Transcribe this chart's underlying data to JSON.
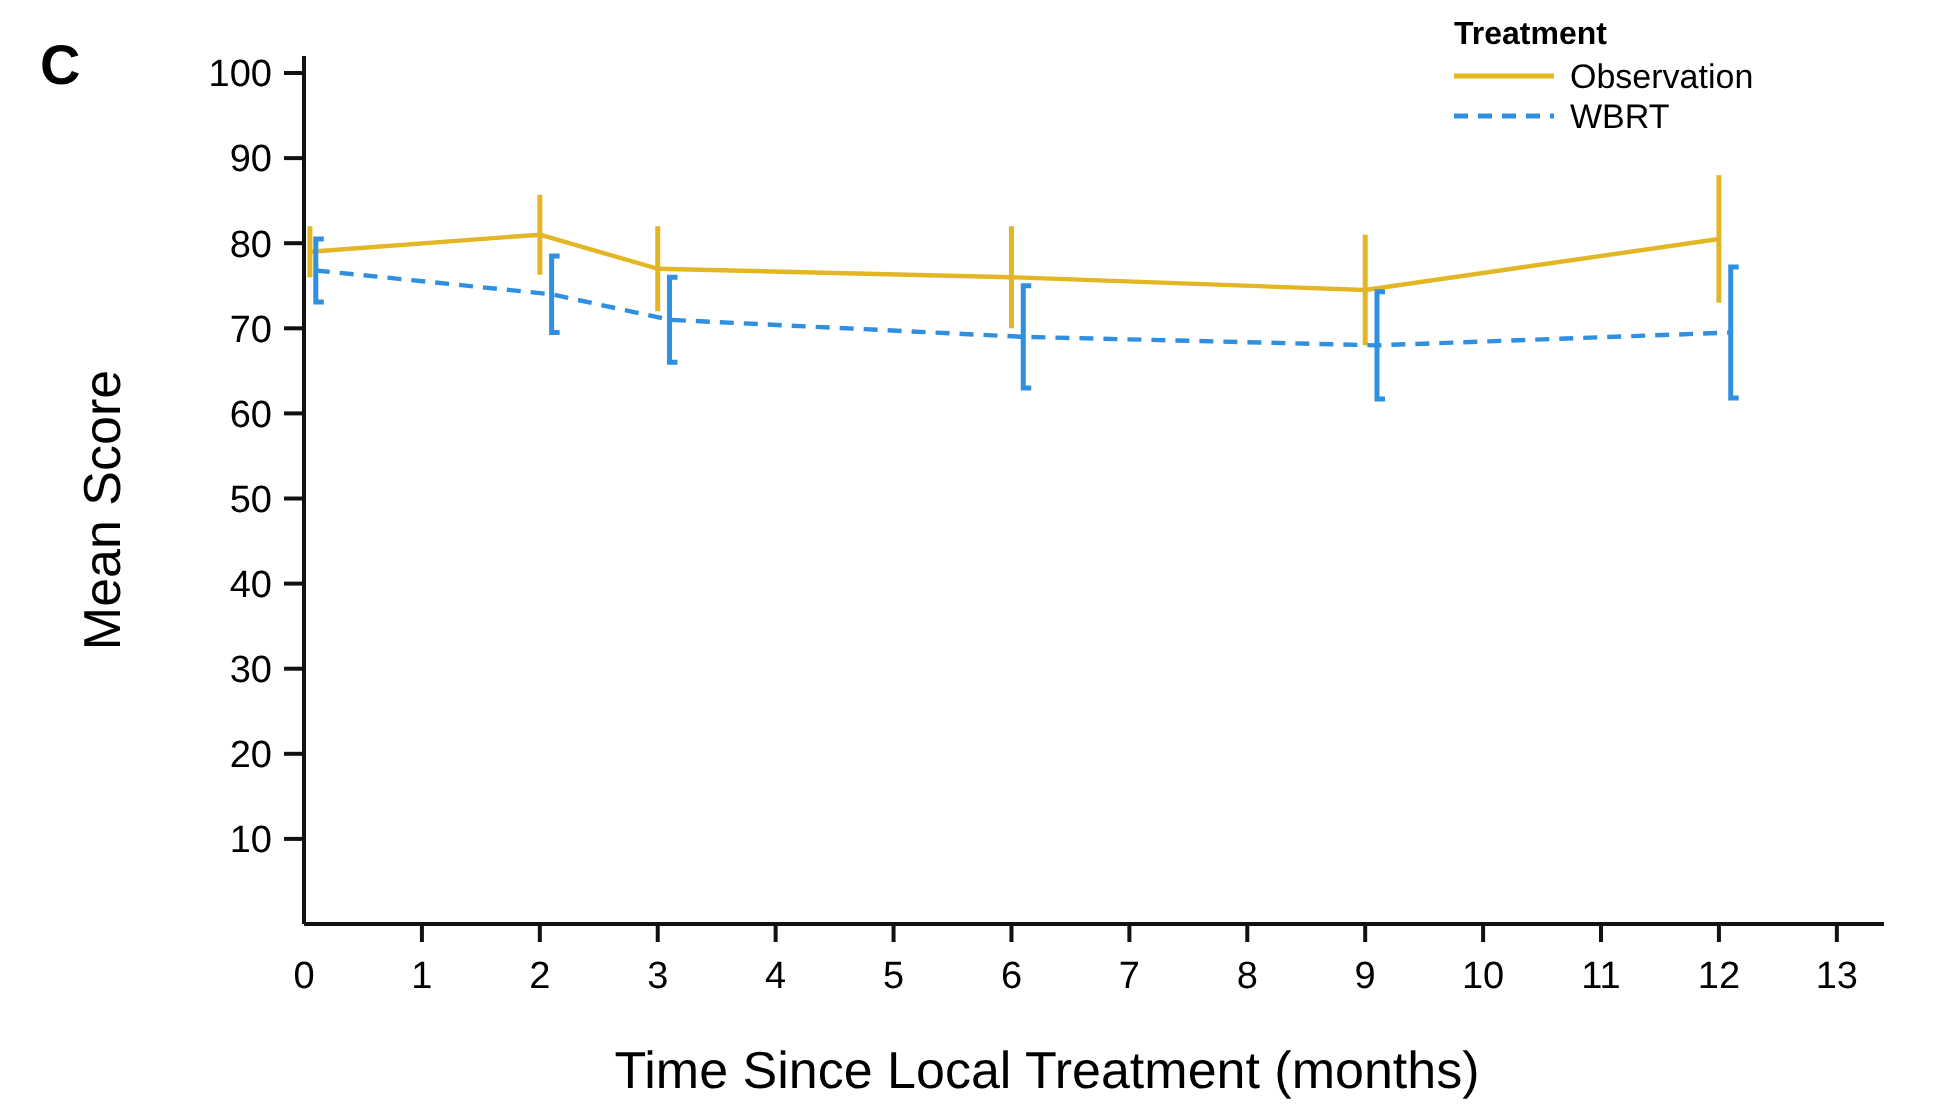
{
  "chart_data": {
    "type": "line",
    "xlabel": "Time Since Local Treatment (months)",
    "ylabel": "Mean Score",
    "legend_title": "Treatment",
    "annotations": [
      "C"
    ],
    "xlim": [
      0,
      13.4
    ],
    "ylim": [
      0,
      102
    ],
    "xticks": [
      0,
      1,
      2,
      3,
      4,
      5,
      6,
      7,
      8,
      9,
      10,
      11,
      12,
      13
    ],
    "yticks": [
      10,
      20,
      30,
      40,
      50,
      60,
      70,
      80,
      90,
      100
    ],
    "grid": false,
    "legend": "top right",
    "marker": "none",
    "series": [
      {
        "name": "Observation",
        "color": "#e2b624",
        "line_style": "solid",
        "x": [
          0.05,
          2,
          3,
          6,
          9,
          12
        ],
        "values": [
          79,
          81,
          77,
          76,
          74.5,
          80.5
        ],
        "errors": [
          3,
          4.7,
          5,
          6,
          6.5,
          7.5
        ]
      },
      {
        "name": "WBRT",
        "color": "#2f8fe0",
        "line_style": "dashed",
        "x": [
          0.1,
          2.1,
          3.1,
          6.1,
          9.1,
          12.1
        ],
        "values": [
          76.8,
          74,
          71,
          69,
          68,
          69.5
        ],
        "errors": [
          3.7,
          4.5,
          5,
          6,
          6.3,
          7.7
        ]
      }
    ]
  }
}
